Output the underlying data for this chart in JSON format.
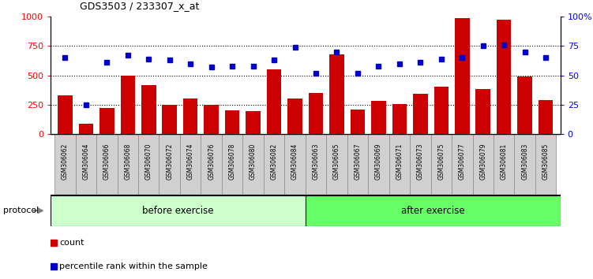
{
  "title": "GDS3503 / 233307_x_at",
  "categories": [
    "GSM306062",
    "GSM306064",
    "GSM306066",
    "GSM306068",
    "GSM306070",
    "GSM306072",
    "GSM306074",
    "GSM306076",
    "GSM306078",
    "GSM306080",
    "GSM306082",
    "GSM306084",
    "GSM306063",
    "GSM306065",
    "GSM306067",
    "GSM306069",
    "GSM306071",
    "GSM306073",
    "GSM306075",
    "GSM306077",
    "GSM306079",
    "GSM306081",
    "GSM306083",
    "GSM306085"
  ],
  "counts": [
    330,
    90,
    220,
    500,
    415,
    250,
    305,
    250,
    200,
    195,
    550,
    305,
    350,
    680,
    205,
    285,
    255,
    340,
    400,
    985,
    385,
    975,
    490,
    290
  ],
  "percentile_ranks": [
    65,
    25,
    61,
    67,
    64,
    63,
    60,
    57,
    58,
    58,
    63,
    74,
    52,
    70,
    52,
    58,
    60,
    61,
    64,
    65,
    75,
    76,
    70,
    65
  ],
  "bar_color": "#cc0000",
  "dot_color": "#0000cc",
  "before_exercise_count": 12,
  "group_before_color": "#ccffcc",
  "group_after_color": "#66ff66",
  "group_before_label": "before exercise",
  "group_after_label": "after exercise",
  "protocol_label": "protocol",
  "legend_count_label": "count",
  "legend_percentile_label": "percentile rank within the sample",
  "ylim_left": [
    0,
    1000
  ],
  "ylim_right": [
    0,
    100
  ],
  "yticks_left": [
    0,
    250,
    500,
    750,
    1000
  ],
  "yticks_right": [
    0,
    25,
    50,
    75,
    100
  ],
  "right_tick_labels": [
    "0",
    "25",
    "50",
    "75",
    "100%"
  ]
}
